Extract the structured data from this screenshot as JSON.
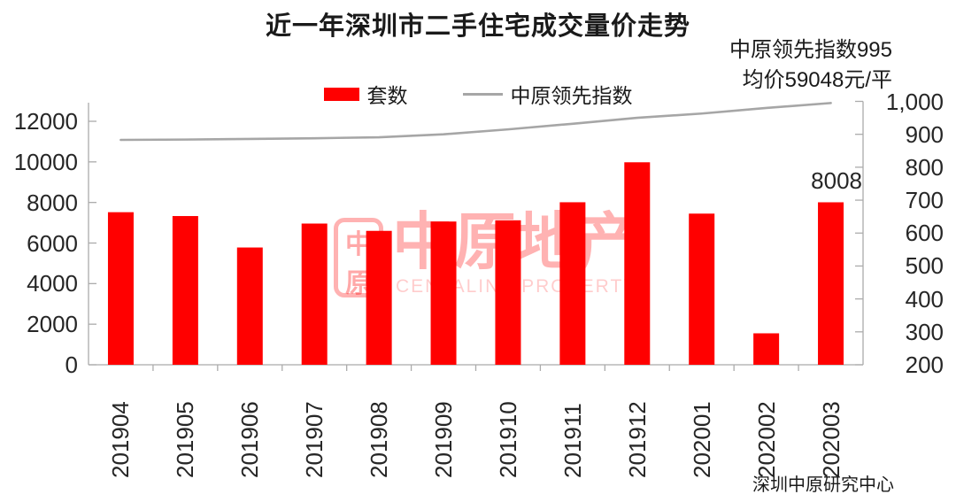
{
  "title": "近一年深圳市二手住宅成交量价走势",
  "annotations": {
    "index_note": "中原领先指数995",
    "price_note": "均价59048元/平",
    "last_bar_label": "8008",
    "source": "深圳中原研究中心"
  },
  "legend": {
    "bar_label": "套数",
    "line_label": "中原领先指数"
  },
  "watermark": {
    "logo_top": "中",
    "logo_bottom": "原",
    "text": "中原地产",
    "subtext": "CENTALINE PROPERTY",
    "color": "#FFA6A6"
  },
  "colors": {
    "bar": "#FF0000",
    "line": "#A6A6A6",
    "axis": "#ABABAB",
    "text": "#262626"
  },
  "chart_data": {
    "type": "bar+line",
    "title": "近一年深圳市二手住宅成交量价走势",
    "categories": [
      "201904",
      "201905",
      "201906",
      "201907",
      "201908",
      "201909",
      "201910",
      "201911",
      "201912",
      "202001",
      "202002",
      "202003"
    ],
    "series": [
      {
        "name": "套数",
        "type": "bar",
        "axis": "left",
        "color": "#FF0000",
        "values": [
          7520,
          7330,
          5780,
          6960,
          6600,
          7060,
          7120,
          8010,
          9980,
          7450,
          1550,
          8008
        ]
      },
      {
        "name": "中原领先指数",
        "type": "line",
        "axis": "right",
        "color": "#A6A6A6",
        "values": [
          883,
          884,
          886,
          888,
          891,
          900,
          915,
          932,
          950,
          963,
          980,
          995
        ]
      }
    ],
    "left_axis": {
      "min": 0,
      "max": 12000,
      "step": 2000
    },
    "right_axis": {
      "min": 200,
      "max": 1000,
      "step": 100
    },
    "grid": false,
    "legend_position": "top",
    "annotations": [
      "中原领先指数995",
      "均价59048元/平",
      "8008"
    ]
  }
}
